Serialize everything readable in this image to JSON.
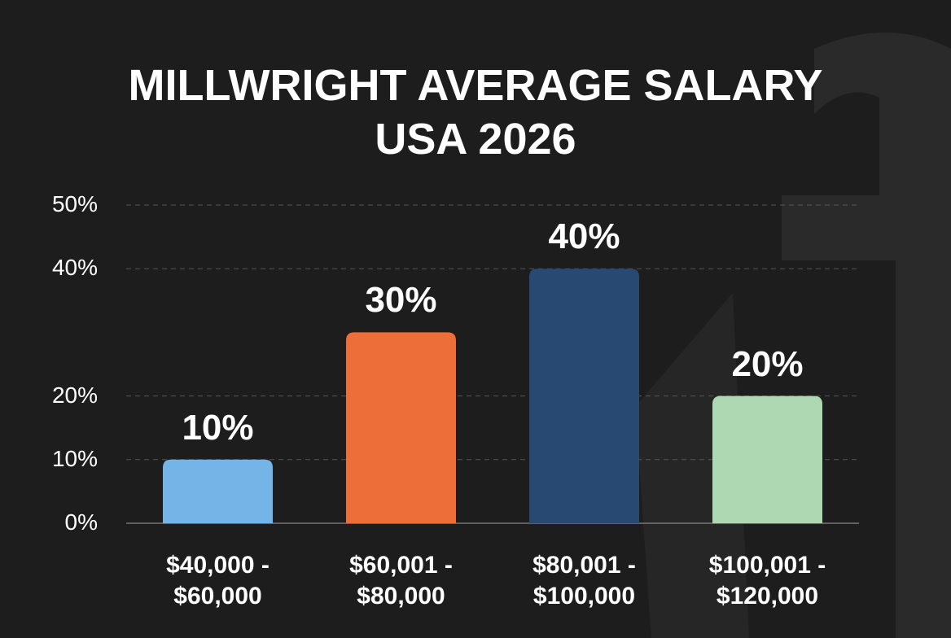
{
  "chart_data": {
    "type": "bar",
    "title": "MILLWRIGHT AVERAGE SALARY USA 2026",
    "categories": [
      "$40,000 - $60,000",
      "$60,001 - $80,000",
      "$80,001 - $100,000",
      "$100,001 - $120,000"
    ],
    "values": [
      10,
      30,
      40,
      20
    ],
    "value_labels": [
      "10%",
      "30%",
      "40%",
      "20%"
    ],
    "colors": [
      "#74b4e6",
      "#ee6e3a",
      "#284a72",
      "#aed8b2"
    ],
    "ylim": [
      0,
      50
    ],
    "yticks": [
      {
        "value": 0,
        "label": "0%"
      },
      {
        "value": 10,
        "label": "10%"
      },
      {
        "value": 20,
        "label": "20%"
      },
      {
        "value": 40,
        "label": "40%"
      },
      {
        "value": 50,
        "label": "50%"
      }
    ],
    "grid": true
  }
}
